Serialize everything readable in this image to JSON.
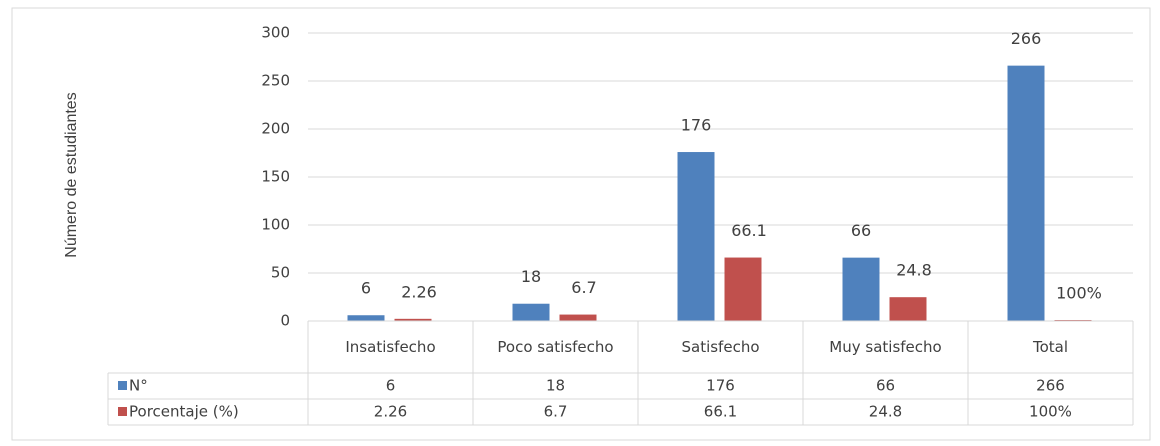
{
  "chart_data": {
    "type": "bar",
    "y_label": "Número de estudiantes",
    "categories": [
      "Insatisfecho",
      "Poco satisfecho",
      "Satisfecho",
      "Muy satisfecho",
      "Total"
    ],
    "series": [
      {
        "name": "N°",
        "color": "#4f81bd",
        "values": [
          6,
          18,
          176,
          66,
          266
        ]
      },
      {
        "name": "Porcentaje (%)",
        "color": "#c0504d",
        "values": [
          2.26,
          6.7,
          66.1,
          24.8,
          1
        ],
        "value_labels": [
          "2.26",
          "6.7",
          "66.1",
          "24.8",
          "100%"
        ]
      }
    ],
    "ylim": [
      0,
      300
    ],
    "yticks": [
      0,
      50,
      100,
      150,
      200,
      250,
      300
    ],
    "grid": true,
    "data_table": true
  }
}
